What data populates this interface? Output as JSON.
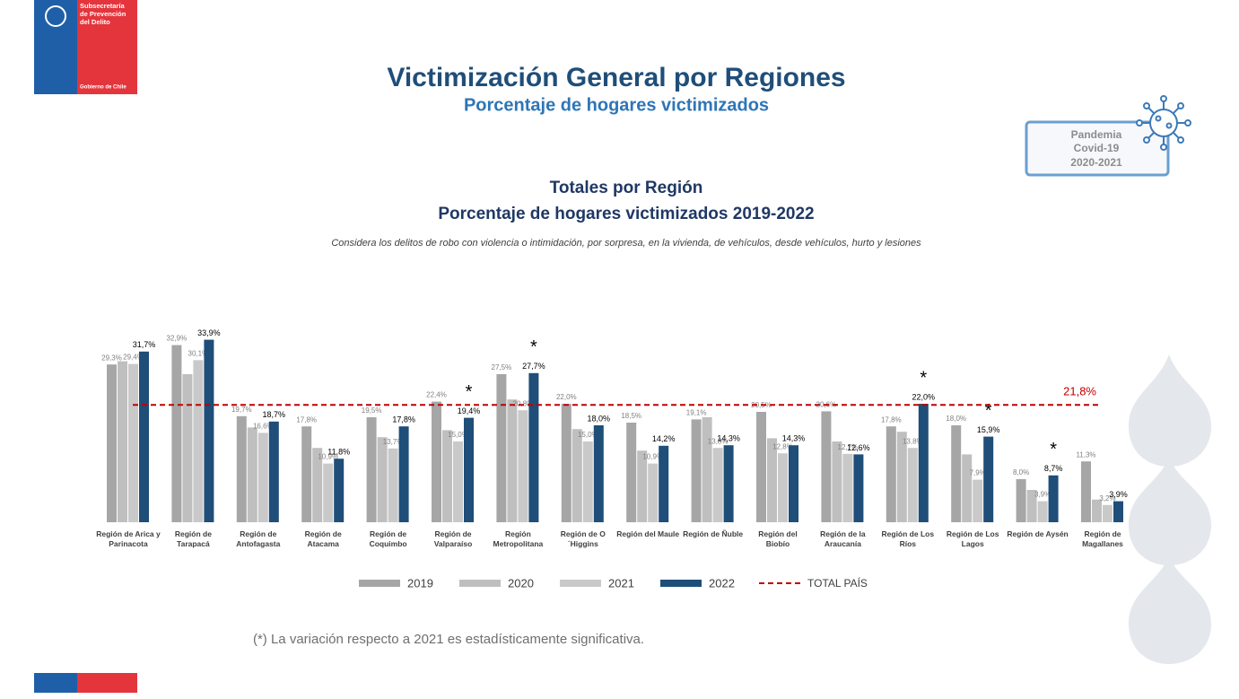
{
  "logo": {
    "lines": [
      "Subsecretaría",
      "de Prevención",
      "del Delito"
    ],
    "footer": "Gobierno de Chile"
  },
  "header": {
    "title": "Victimización General por Regiones",
    "subtitle": "Porcentaje de hogares victimizados"
  },
  "badge": {
    "lines": [
      "Pandemia",
      "Covid-19",
      "2020-2021"
    ]
  },
  "chart_data": {
    "type": "bar",
    "title": "Totales por Región",
    "subtitle": "Porcentaje de hogares victimizados 2019-2022",
    "note": "Considera los delitos de robo con violencia o intimidación, por sorpresa, en la vivienda, de vehículos, desde vehículos, hurto y lesiones",
    "categories": [
      "Región de Arica y Parinacota",
      "Región de Tarapacá",
      "Región de Antofagasta",
      "Región de Atacama",
      "Región de Coquimbo",
      "Región de Valparaíso",
      "Región Metropolitana",
      "Región de O´Higgins",
      "Región del Maule",
      "Región de Ñuble",
      "Región del Biobío",
      "Región de la Araucanía",
      "Región de Los Ríos",
      "Región de Los Lagos",
      "Región de Aysén",
      "Región de Magallanes"
    ],
    "series": [
      {
        "name": "2019",
        "color": "#a6a6a6",
        "values": [
          29.3,
          32.9,
          19.7,
          17.8,
          19.5,
          22.4,
          27.5,
          22.0,
          18.5,
          19.1,
          20.5,
          20.6,
          17.8,
          18.0,
          8.0,
          11.3
        ],
        "value_labels": [
          "29,3%",
          "32,9%",
          "19,7%",
          "17,8%",
          "19,5%",
          "22,4%",
          "27,5%",
          "22,0%",
          "18,5%",
          "19,1%",
          "20,5%",
          "20,6%",
          "17,8%",
          "18,0%",
          "8,0%",
          "11,3%"
        ]
      },
      {
        "name": "2020",
        "color": "#bfbfbf",
        "values": [
          29.9,
          27.5,
          17.6,
          13.8,
          15.8,
          17.1,
          22.8,
          17.3,
          13.3,
          19.5,
          15.6,
          15.0,
          16.8,
          12.6,
          6.0,
          4.2
        ]
      },
      {
        "name": "2021",
        "color": "#c9c9c9",
        "values": [
          29.4,
          30.1,
          16.6,
          10.9,
          13.7,
          15.0,
          20.8,
          15.0,
          10.9,
          13.8,
          12.8,
          12.7,
          13.8,
          7.9,
          3.9,
          3.2
        ],
        "value_labels": [
          "29,4%",
          "30,1%",
          "16,6%",
          "10,9%",
          "13,7%",
          "15,0%",
          "20,8%",
          "15,0%",
          "10,9%",
          "13,8%",
          "12,8%",
          "12,7%",
          "13,8%",
          "7,9%",
          "3,9%",
          "3,2%"
        ]
      },
      {
        "name": "2022",
        "color": "#1f4e79",
        "values": [
          31.7,
          33.9,
          18.7,
          11.8,
          17.8,
          19.4,
          27.7,
          18.0,
          14.2,
          14.3,
          14.3,
          12.6,
          22.0,
          15.9,
          8.7,
          3.9
        ],
        "value_labels": [
          "31,7%",
          "33,9%",
          "18,7%",
          "11,8%",
          "17,8%",
          "19,4%",
          "27,7%",
          "18,0%",
          "14,2%",
          "14,3%",
          "14,3%",
          "12,6%",
          "22,0%",
          "15,9%",
          "8,7%",
          "3,9%"
        ]
      }
    ],
    "significance": [
      null,
      null,
      null,
      null,
      null,
      "*",
      "*",
      null,
      null,
      null,
      null,
      null,
      "*",
      "*",
      "*",
      null
    ],
    "reference": {
      "name": "TOTAL PAÍS",
      "value": 21.8,
      "label": "21,8%",
      "color": "#c00000"
    },
    "ylim": [
      0,
      36
    ],
    "grid": false
  },
  "footnote": "(*) La variación respecto a 2021 es estadísticamente significativa."
}
